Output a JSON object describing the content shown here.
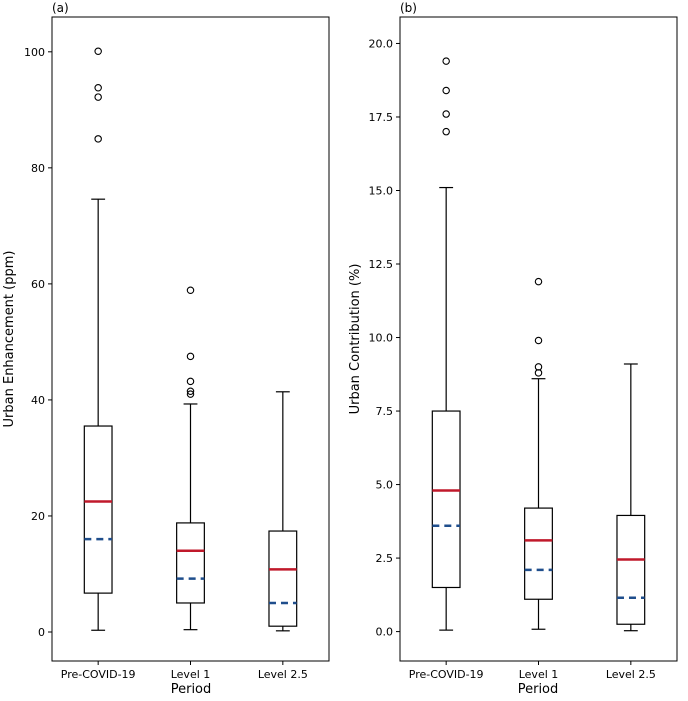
{
  "chart_data": [
    {
      "type": "box",
      "panel_label": "(a)",
      "xlabel": "Period",
      "ylabel": "Urban Enhancement (ppm)",
      "categories": [
        "Pre-COVID-19",
        "Level 1",
        "Level 2.5"
      ],
      "ylim": [
        -5,
        106
      ],
      "yticks": [
        0,
        20,
        40,
        60,
        80,
        100
      ],
      "ytick_labels": [
        "0",
        "20",
        "40",
        "60",
        "80",
        "100"
      ],
      "boxes": [
        {
          "category": "Pre-COVID-19",
          "whisker_low": 0.3,
          "q1": 6.7,
          "median": 22.5,
          "mean": 16.0,
          "q3": 35.5,
          "whisker_high": 74.6,
          "outliers": [
            85.0,
            92.2,
            93.8,
            100.1
          ]
        },
        {
          "category": "Level 1",
          "whisker_low": 0.4,
          "q1": 5.0,
          "median": 14.0,
          "mean": 9.2,
          "q3": 18.8,
          "whisker_high": 39.3,
          "outliers": [
            41.0,
            41.5,
            43.2,
            47.5,
            58.9
          ]
        },
        {
          "category": "Level 2.5",
          "whisker_low": 0.2,
          "q1": 1.0,
          "median": 10.8,
          "mean": 5.0,
          "q3": 17.4,
          "whisker_high": 41.4,
          "outliers": []
        }
      ]
    },
    {
      "type": "box",
      "panel_label": "(b)",
      "xlabel": "Period",
      "ylabel": "Urban Contribution (%)",
      "categories": [
        "Pre-COVID-19",
        "Level 1",
        "Level 2.5"
      ],
      "ylim": [
        -1.0,
        20.9
      ],
      "yticks": [
        0.0,
        2.5,
        5.0,
        7.5,
        10.0,
        12.5,
        15.0,
        17.5,
        20.0
      ],
      "ytick_labels": [
        "0.0",
        "2.5",
        "5.0",
        "7.5",
        "10.0",
        "12.5",
        "15.0",
        "17.5",
        "20.0"
      ],
      "boxes": [
        {
          "category": "Pre-COVID-19",
          "whisker_low": 0.05,
          "q1": 1.5,
          "median": 4.8,
          "mean": 3.6,
          "q3": 7.5,
          "whisker_high": 15.1,
          "outliers": [
            17.0,
            17.6,
            18.4,
            19.4
          ]
        },
        {
          "category": "Level 1",
          "whisker_low": 0.08,
          "q1": 1.1,
          "median": 3.1,
          "mean": 2.1,
          "q3": 4.2,
          "whisker_high": 8.6,
          "outliers": [
            8.8,
            9.0,
            9.9,
            11.9
          ]
        },
        {
          "category": "Level 2.5",
          "whisker_low": 0.03,
          "q1": 0.25,
          "median": 2.45,
          "mean": 1.15,
          "q3": 3.95,
          "whisker_high": 9.1,
          "outliers": []
        }
      ]
    }
  ],
  "colors": {
    "median": "#c0192b",
    "mean": "#1f4e8c",
    "box": "#000000",
    "background": "#ffffff"
  }
}
